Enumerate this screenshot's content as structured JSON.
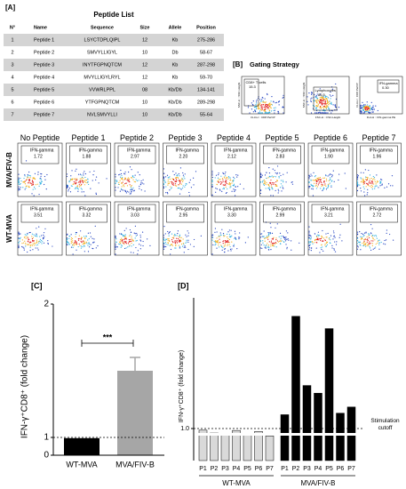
{
  "panel_a": {
    "label": "[A]",
    "title": "Peptide List",
    "columns": [
      "N°",
      "Name",
      "Sequence",
      "Size",
      "Allele",
      "Position"
    ],
    "rows": [
      [
        "1",
        "Peptide 1",
        "LSYCTDPLQIPL",
        "12",
        "Kb",
        "275-286"
      ],
      [
        "2",
        "Peptide 2",
        "SMVYLLIGYL",
        "10",
        "Db",
        "58-67"
      ],
      [
        "3",
        "Peptide 3",
        "INYTFGPNQTCM",
        "12",
        "Kb",
        "287-298"
      ],
      [
        "4",
        "Peptide 4",
        "MVYLLIGYLRYL",
        "12",
        "Kb",
        "59-70"
      ],
      [
        "5",
        "Peptide 5",
        "VVWRLPPL",
        "08",
        "Kb/Db",
        "134-141"
      ],
      [
        "6",
        "Peptide 6",
        "YTFGPNQTCM",
        "10",
        "Kb/Db",
        "289-298"
      ],
      [
        "7",
        "Peptide 7",
        "NVLSMVYLLI",
        "10",
        "Kb/Db",
        "55-64"
      ]
    ]
  },
  "panel_b": {
    "label": "[B]",
    "title": "Gating Strategy",
    "gates": [
      {
        "name": "CD8+ T cells",
        "value": "15.3",
        "x_label": "FL3-H :: CD8 PerCP",
        "y_label": "SSC-H :: SSC-Height"
      },
      {
        "name": "Lymphocytes",
        "value": "86.5",
        "x_label": "FSC-H :: FSC-Height",
        "y_label": "SSC-H :: SSC-Height"
      },
      {
        "name": "IFN-gamma",
        "value": "0.30",
        "x_label": "FL4-H :: IFN-gamma PE",
        "y_label": "FL3-H :: CD8 PerCP"
      }
    ],
    "conditions": [
      "No Peptide",
      "Peptide 1",
      "Peptide 2",
      "Peptide 3",
      "Peptide 4",
      "Peptide 5",
      "Peptide 6",
      "Peptide 7"
    ],
    "rows": [
      {
        "name": "MVA/FIV-B",
        "gate": "IFN-gamma",
        "values": [
          "1.72",
          "1.88",
          "2.97",
          "2.20",
          "2.12",
          "2.83",
          "1.90",
          "1.96"
        ]
      },
      {
        "name": "WT-MVA",
        "gate": "IFN-gamma",
        "values": [
          "3.51",
          "3.32",
          "3.03",
          "2.95",
          "3.30",
          "2.99",
          "3.21",
          "2.72"
        ]
      }
    ]
  },
  "chart_data": [
    {
      "type": "bar",
      "label": "[C]",
      "ylabel": "IFN-γ⁺CD8⁺ (fold change)",
      "categories": [
        "WT-MVA",
        "MVA/FIV-B"
      ],
      "values": [
        0.96,
        1.5
      ],
      "errors": [
        null,
        0.1
      ],
      "colors": [
        "#000000",
        "#a6a6a6"
      ],
      "ylim": [
        0,
        2
      ],
      "yticks": [
        0,
        1,
        2
      ],
      "axis_break": 1,
      "reference_line": 1,
      "annotation": "***"
    },
    {
      "type": "grouped_bar",
      "label": "[D]",
      "ylabel": "IFN-γ⁺CD8⁺ (fold change)",
      "categories": [
        "P1",
        "P2",
        "P3",
        "P4",
        "P5",
        "P6",
        "P7"
      ],
      "series": [
        {
          "name": "WT-MVA",
          "color": "#d9d9d9",
          "values": [
            0.95,
            0.86,
            0.84,
            0.94,
            0.85,
            0.91,
            0.77
          ]
        },
        {
          "name": "MVA/FIV-B",
          "color": "#000000",
          "values": [
            1.09,
            1.73,
            1.28,
            1.23,
            1.65,
            1.1,
            1.14
          ]
        }
      ],
      "ylim": [
        0,
        1.85
      ],
      "yticks": [
        {
          "value": 1,
          "label": "1.0"
        }
      ],
      "axis_break": 1,
      "reference_line": 1,
      "reference_label": "Stimulation cutoff"
    }
  ]
}
